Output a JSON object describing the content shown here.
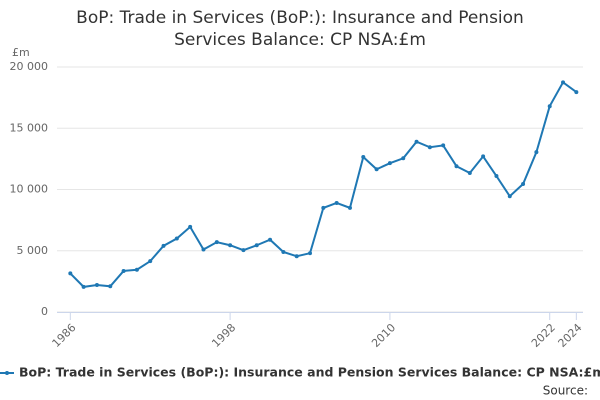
{
  "chart_data": {
    "type": "line",
    "title": [
      "BoP: Trade in Services (BoP:): Insurance and Pension",
      "Services Balance: CP NSA:£m"
    ],
    "y_unit": "£m",
    "source_label": "Source:",
    "x": [
      1986,
      1987,
      1988,
      1989,
      1990,
      1991,
      1992,
      1993,
      1994,
      1995,
      1996,
      1997,
      1998,
      1999,
      2000,
      2001,
      2002,
      2003,
      2004,
      2005,
      2006,
      2007,
      2008,
      2009,
      2010,
      2011,
      2012,
      2013,
      2014,
      2015,
      2016,
      2017,
      2018,
      2019,
      2020,
      2021,
      2022,
      2023,
      2024
    ],
    "series": [
      {
        "name": "BoP: Trade in Services (BoP:): Insurance and Pension Services Balance: CP NSA:£m",
        "color": "#1f78b4",
        "values": [
          3150,
          2050,
          2200,
          2100,
          3350,
          3450,
          4150,
          5400,
          6000,
          6950,
          5100,
          5700,
          5450,
          5050,
          5450,
          5900,
          4900,
          4550,
          4800,
          8500,
          8900,
          8500,
          12650,
          11650,
          12150,
          12550,
          13900,
          13450,
          13600,
          11900,
          11350,
          12700,
          11100,
          9450,
          10450,
          13050,
          16800,
          18750,
          17950
        ]
      }
    ],
    "xlim": [
      1985,
      2024.5
    ],
    "xticks": [
      1986,
      1998,
      2010,
      2022,
      2024
    ],
    "ylim": [
      0,
      20000
    ],
    "yticks": [
      0,
      {
        "value": 5000,
        "label": "5 000"
      },
      {
        "value": 10000,
        "label": "10 000"
      },
      {
        "value": 15000,
        "label": "15 000"
      },
      {
        "value": 20000,
        "label": "20 000"
      }
    ],
    "grid": true,
    "legend": "bottom"
  }
}
